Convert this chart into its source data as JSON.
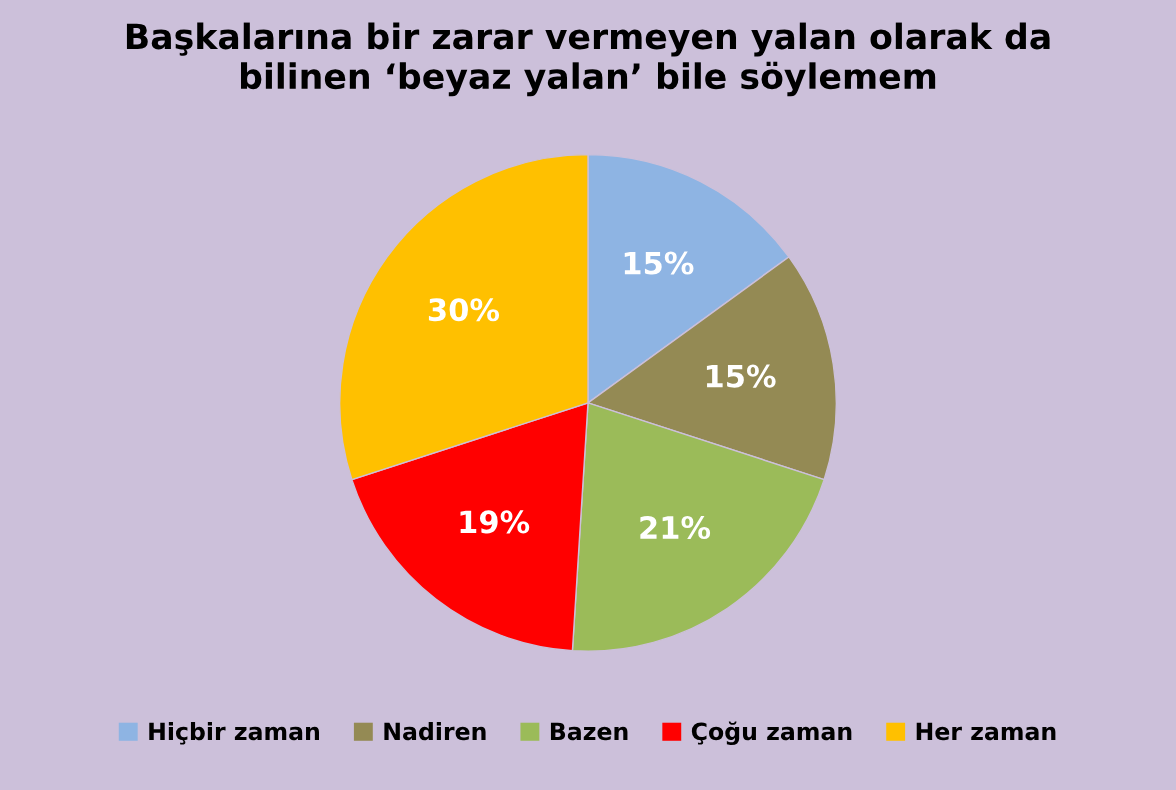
{
  "chart_data": {
    "type": "pie",
    "title": "Başkalarına bir zarar vermeyen yalan olarak da\nbilinen ‘beyaz yalan’ bile söylemem",
    "categories": [
      "Hiçbir zaman",
      "Nadiren",
      "Bazen",
      "Çoğu zaman",
      "Her zaman"
    ],
    "values": [
      15,
      15,
      21,
      19,
      30
    ],
    "value_labels": [
      "15%",
      "15%",
      "21%",
      "19%",
      "30%"
    ],
    "colors": [
      "#8eb4e3",
      "#948a54",
      "#9bbb59",
      "#ff0000",
      "#ffc000"
    ],
    "legend": "bottom"
  }
}
